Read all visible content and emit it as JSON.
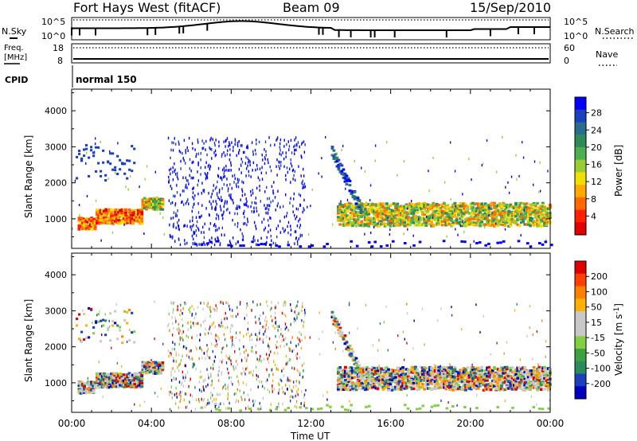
{
  "header": {
    "radar_name": "Fort Hays West (fitACF)",
    "beam": "Beam 09",
    "date": "15/Sep/2010"
  },
  "status_panels": {
    "noise": {
      "left_label": "N.Sky",
      "right_label": "N.Search",
      "left_ticks": [
        "10^5",
        "10^0"
      ],
      "right_ticks": [
        "10^5",
        "10^0"
      ]
    },
    "freq": {
      "left_label_line1": "Freq.",
      "left_label_line2": "[MHz]",
      "right_label": "Nave",
      "left_ticks": [
        "18",
        "8"
      ],
      "right_ticks": [
        "60",
        "0"
      ]
    },
    "cpid": {
      "label": "CPID",
      "value": "normal 150"
    }
  },
  "chart_data": [
    {
      "type": "heatmap",
      "panel": "power",
      "ylabel": "Slant Range [km]",
      "yticks": [
        "4000",
        "3000",
        "2000",
        "1000"
      ],
      "ylim": [
        180,
        4600
      ],
      "xlim": [
        0,
        24
      ],
      "colorbar": {
        "label": "Power [dB]",
        "ticks": [
          "28",
          "24",
          "20",
          "16",
          "12",
          "8",
          "4"
        ],
        "colors": [
          "#0000ff",
          "#1a3fbf",
          "#2a6c8c",
          "#2e8b57",
          "#4caf50",
          "#99cc33",
          "#f0e000",
          "#ffaa00",
          "#ff6a00",
          "#ff2000",
          "#e00000"
        ]
      },
      "bands": [
        {
          "t_start": 0.3,
          "t_end": 1.2,
          "range_center": 900,
          "range_width": 200,
          "level": "high"
        },
        {
          "t_start": 1.2,
          "t_end": 3.5,
          "range_center": 1100,
          "range_width": 250,
          "level": "high"
        },
        {
          "t_start": 3.5,
          "t_end": 4.5,
          "range_center": 1450,
          "range_width": 200,
          "level": "medium"
        },
        {
          "t_start": 13.3,
          "t_end": 24.0,
          "range_center": 1150,
          "range_width": 400,
          "level": "medium"
        }
      ]
    },
    {
      "type": "heatmap",
      "panel": "velocity",
      "ylabel": "Slant Range [km]",
      "yticks": [
        "4000",
        "3000",
        "2000",
        "1000"
      ],
      "ylim": [
        180,
        4600
      ],
      "xlim": [
        0,
        24
      ],
      "colorbar": {
        "label": "Velocity [m s-1]",
        "ticks": [
          "200",
          "100",
          "50",
          "15",
          "-15",
          "-50",
          "-100",
          "-200"
        ],
        "colors": [
          "#e00000",
          "#ff4000",
          "#ff8000",
          "#ffb000",
          "#c8c8c8",
          "#c8c8c8",
          "#80d040",
          "#40a040",
          "#2a8c5a",
          "#1a3fbf",
          "#0000c0"
        ]
      },
      "x_ticks": [
        "00:00",
        "04:00",
        "08:00",
        "12:00",
        "16:00",
        "20:00",
        "00:00"
      ],
      "xlabel": "Time UT"
    }
  ]
}
